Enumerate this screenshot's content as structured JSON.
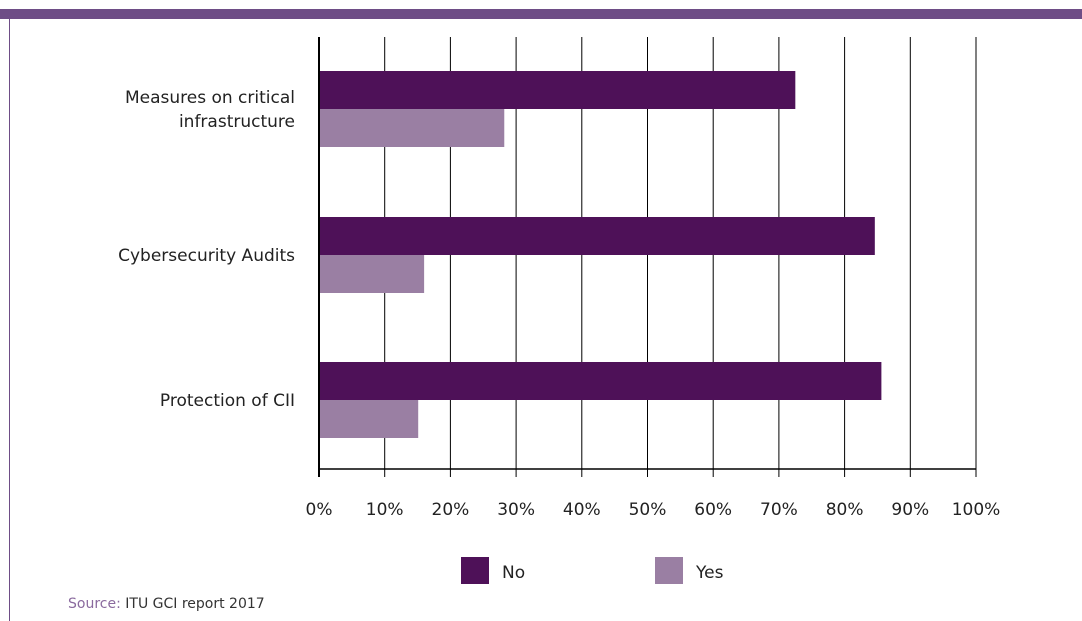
{
  "colors": {
    "frame": "#6e4d86",
    "no": "#4e1158",
    "yes": "#9a7fa3",
    "axis": "#000000"
  },
  "source": {
    "label": "Source:",
    "text": "ITU GCI report 2017"
  },
  "chart_data": {
    "type": "bar",
    "orientation": "horizontal",
    "categories": [
      "Measures on critical infrastructure",
      "Cybersecurity Audits",
      "Protection of CII"
    ],
    "category_label_lines": [
      [
        "Measures on critical",
        "infrastructure"
      ],
      [
        "Cybersecurity Audits"
      ],
      [
        "Protection of CII"
      ]
    ],
    "series": [
      {
        "name": "No",
        "values": [
          72.5,
          84.6,
          85.6
        ]
      },
      {
        "name": "Yes",
        "values": [
          28.2,
          16.0,
          15.1
        ]
      }
    ],
    "xlim": [
      0,
      100
    ],
    "ticks": [
      0,
      10,
      20,
      30,
      40,
      50,
      60,
      70,
      80,
      90,
      100
    ],
    "tick_labels": [
      "0%",
      "10%",
      "20%",
      "30%",
      "40%",
      "50%",
      "60%",
      "70%",
      "80%",
      "90%",
      "100%"
    ],
    "grid": "vertical",
    "legend_position": "bottom"
  }
}
